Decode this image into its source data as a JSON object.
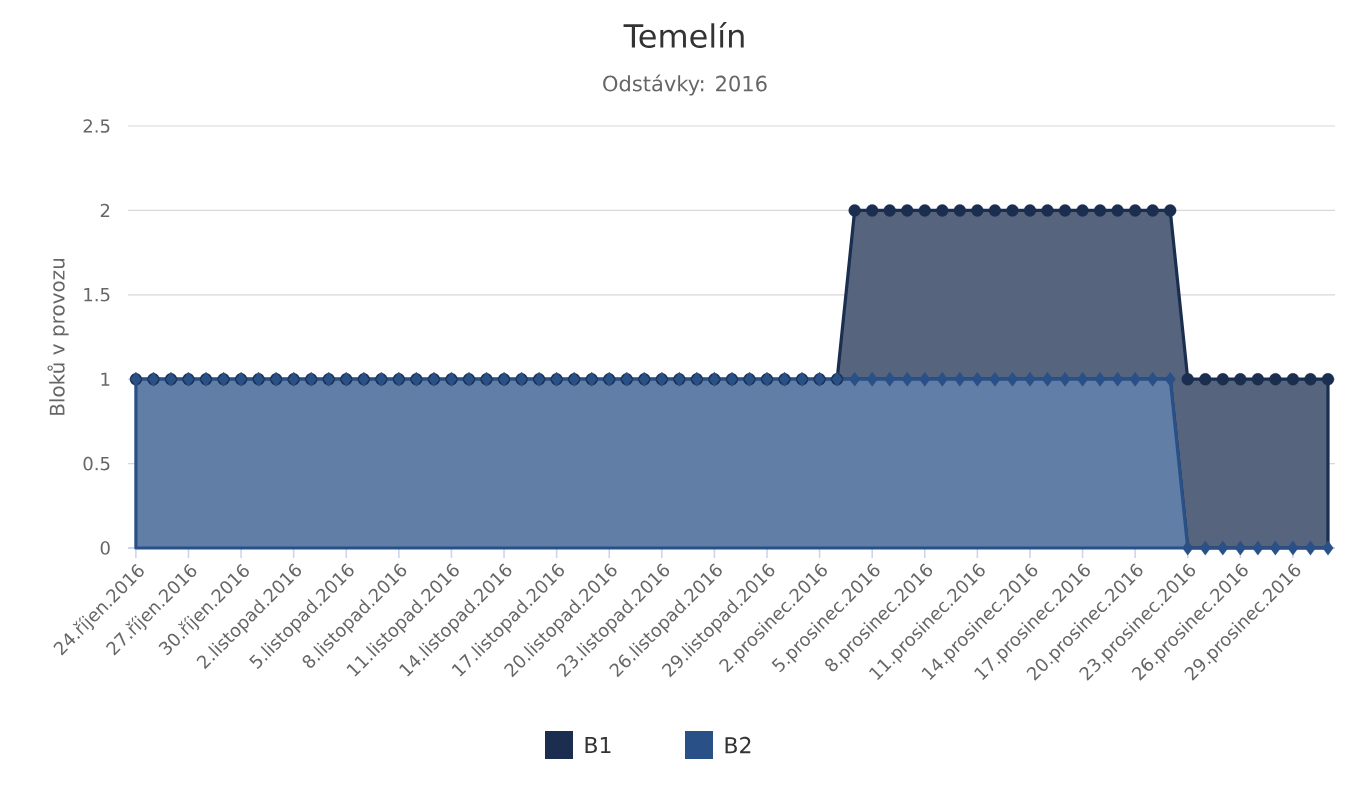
{
  "chart_data": {
    "type": "area",
    "title": "Temelín",
    "subtitle": "Odstávky: 2016",
    "ylabel": "Bloků v provozu",
    "categories": [
      "24.říjen.2016",
      null,
      null,
      "27.říjen.2016",
      null,
      null,
      "30.říjen.2016",
      null,
      null,
      "2.listopad.2016",
      null,
      null,
      "5.listopad.2016",
      null,
      null,
      "8.listopad.2016",
      null,
      null,
      "11.listopad.2016",
      null,
      null,
      "14.listopad.2016",
      null,
      null,
      "17.listopad.2016",
      null,
      null,
      "20.listopad.2016",
      null,
      null,
      "23.listopad.2016",
      null,
      null,
      "26.listopad.2016",
      null,
      null,
      "29.listopad.2016",
      null,
      null,
      "2.prosinec.2016",
      null,
      null,
      "5.prosinec.2016",
      null,
      null,
      "8.prosinec.2016",
      null,
      null,
      "11.prosinec.2016",
      null,
      null,
      "14.prosinec.2016",
      null,
      null,
      "17.prosinec.2016",
      null,
      null,
      "20.prosinec.2016",
      null,
      null,
      "23.prosinec.2016",
      null,
      null,
      "26.prosinec.2016",
      null,
      null,
      "29.prosinec.2016",
      null,
      null
    ],
    "stacked": true,
    "series": [
      {
        "name": "B2",
        "color": "#2a5088",
        "marker": "diamond",
        "values": [
          1,
          1,
          1,
          1,
          1,
          1,
          1,
          1,
          1,
          1,
          1,
          1,
          1,
          1,
          1,
          1,
          1,
          1,
          1,
          1,
          1,
          1,
          1,
          1,
          1,
          1,
          1,
          1,
          1,
          1,
          1,
          1,
          1,
          1,
          1,
          1,
          1,
          1,
          1,
          1,
          1,
          1,
          1,
          1,
          1,
          1,
          1,
          1,
          1,
          1,
          1,
          1,
          1,
          1,
          1,
          1,
          1,
          1,
          1,
          1,
          0,
          0,
          0,
          0,
          0,
          0,
          0,
          0,
          0
        ]
      },
      {
        "name": "B1",
        "color": "#1b2e50",
        "marker": "circle",
        "values": [
          0,
          0,
          0,
          0,
          0,
          0,
          0,
          0,
          0,
          0,
          0,
          0,
          0,
          0,
          0,
          0,
          0,
          0,
          0,
          0,
          0,
          0,
          0,
          0,
          0,
          0,
          0,
          0,
          0,
          0,
          0,
          0,
          0,
          0,
          0,
          0,
          0,
          0,
          0,
          0,
          0,
          1,
          1,
          1,
          1,
          1,
          1,
          1,
          1,
          1,
          1,
          1,
          1,
          1,
          1,
          1,
          1,
          1,
          1,
          1,
          1,
          1,
          1,
          1,
          1,
          1,
          1,
          1,
          1
        ]
      }
    ],
    "ylim": [
      0,
      2.5
    ],
    "yticks": [
      0,
      0.5,
      1,
      1.5,
      2,
      2.5
    ],
    "grid": "y",
    "legend": "bottom"
  }
}
